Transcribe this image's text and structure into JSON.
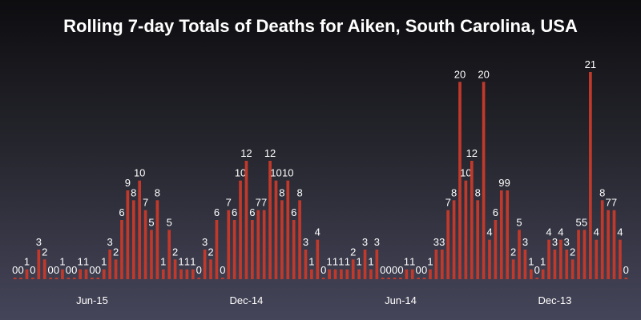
{
  "chart_data": {
    "type": "bar",
    "title": "Rolling 7-day Totals of Deaths for Aiken, South Carolina, USA",
    "xlabel": "",
    "ylabel": "",
    "ylim": [
      0,
      21
    ],
    "grid": false,
    "legend": "none",
    "x_order": "newest-left",
    "bar_color": "#c0392b",
    "x_ticks": [
      "Jun-15",
      "Dec-14",
      "Jun-14",
      "Dec-13"
    ],
    "values": [
      0,
      0,
      1,
      0,
      3,
      2,
      0,
      0,
      1,
      0,
      0,
      1,
      1,
      0,
      0,
      1,
      3,
      2,
      6,
      9,
      8,
      10,
      7,
      5,
      8,
      1,
      5,
      2,
      1,
      1,
      1,
      0,
      3,
      2,
      6,
      0,
      7,
      6,
      10,
      12,
      6,
      7,
      7,
      12,
      10,
      8,
      10,
      6,
      8,
      3,
      1,
      4,
      0,
      1,
      1,
      1,
      1,
      2,
      1,
      3,
      1,
      3,
      0,
      0,
      0,
      0,
      1,
      1,
      0,
      0,
      1,
      3,
      3,
      7,
      8,
      20,
      10,
      12,
      8,
      20,
      4,
      6,
      9,
      9,
      2,
      5,
      3,
      1,
      0,
      1,
      4,
      3,
      4,
      3,
      2,
      5,
      5,
      21,
      4,
      8,
      7,
      7,
      4,
      0
    ]
  }
}
